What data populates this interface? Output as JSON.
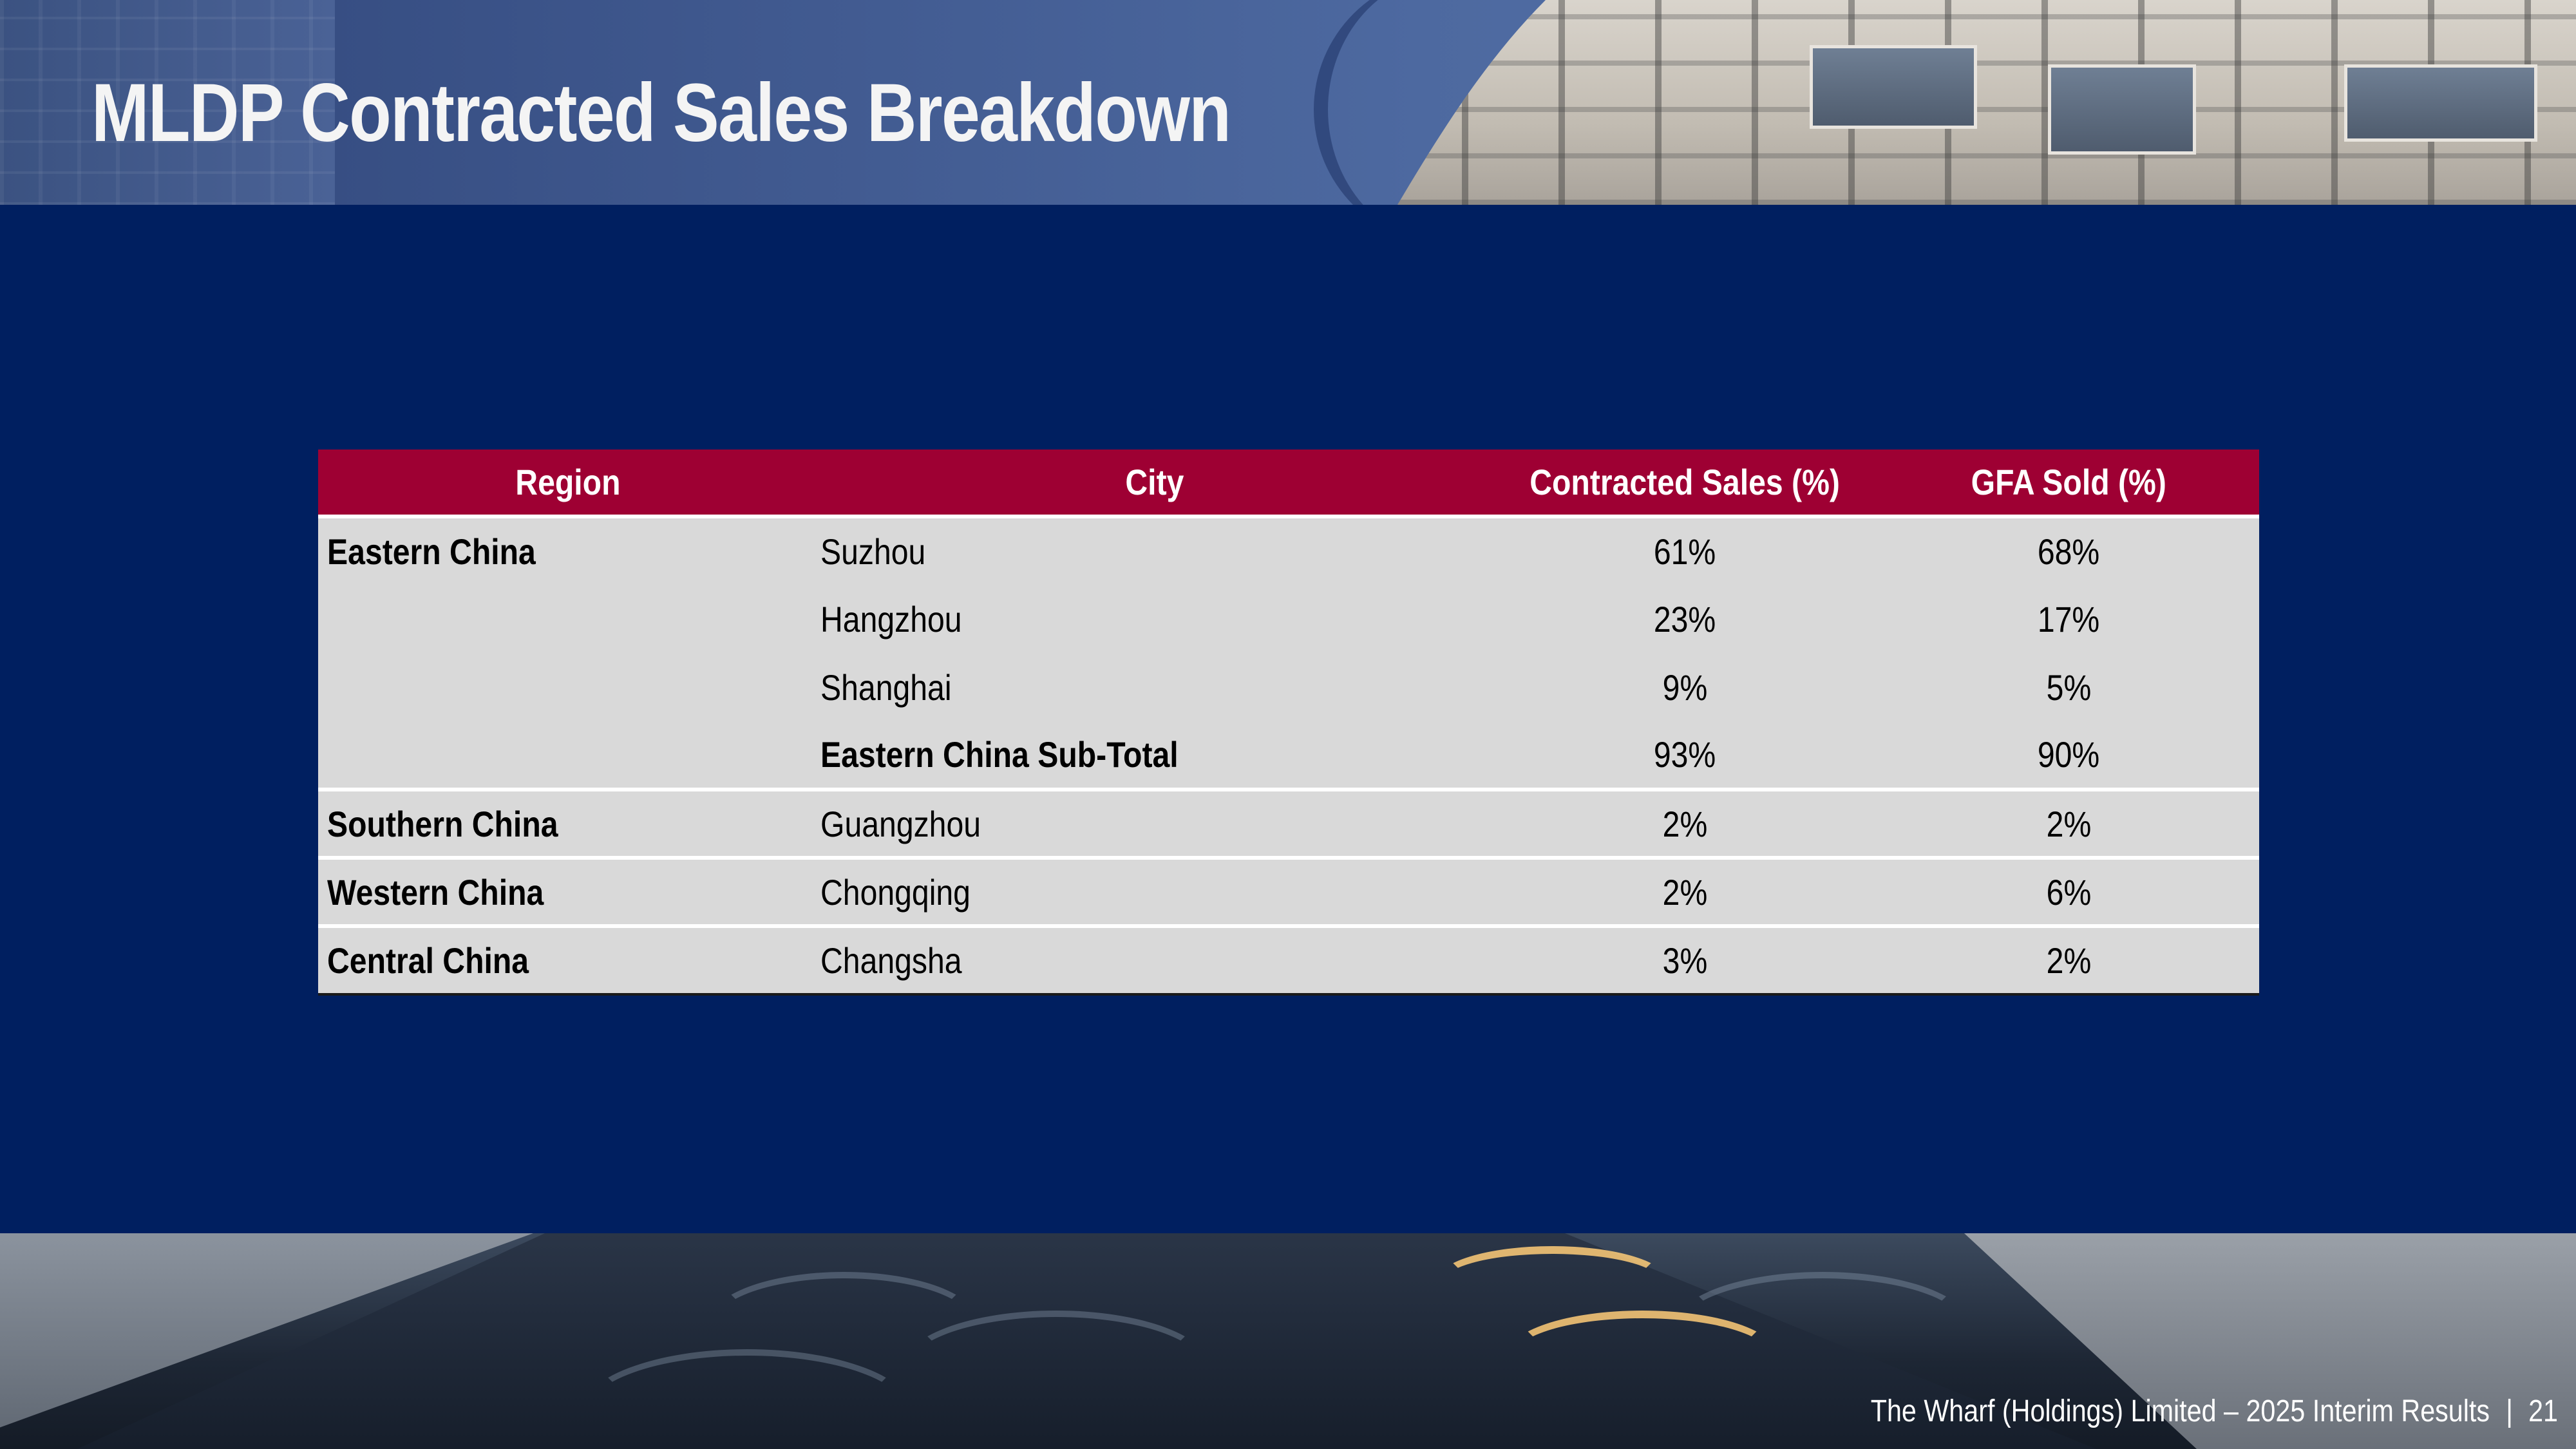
{
  "title": "MLDP Contracted Sales Breakdown",
  "table": {
    "headers": [
      "Region",
      "City",
      "Contracted Sales (%)",
      "GFA Sold (%)"
    ],
    "rows": [
      {
        "region": "Eastern China",
        "city": "Suzhou",
        "sales": "61%",
        "gfa": "68%"
      },
      {
        "region": "",
        "city": "Hangzhou",
        "sales": "23%",
        "gfa": "17%"
      },
      {
        "region": "",
        "city": "Shanghai",
        "sales": "9%",
        "gfa": "5%"
      },
      {
        "region": "",
        "city": "Eastern China Sub-Total",
        "sales": "93%",
        "gfa": "90%"
      },
      {
        "region": "Southern China",
        "city": "Guangzhou",
        "sales": "2%",
        "gfa": "2%"
      },
      {
        "region": "Western China",
        "city": "Chongqing",
        "sales": "2%",
        "gfa": "6%"
      },
      {
        "region": "Central China",
        "city": "Changsha",
        "sales": "3%",
        "gfa": "2%"
      }
    ]
  },
  "footer": {
    "text": "The Wharf (Holdings) Limited – 2025 Interim Results",
    "separator": "|",
    "page_number": "21"
  },
  "colors": {
    "background": "#001f60",
    "header_row": "#9e0033",
    "row_fill": "#d9d9d9"
  }
}
